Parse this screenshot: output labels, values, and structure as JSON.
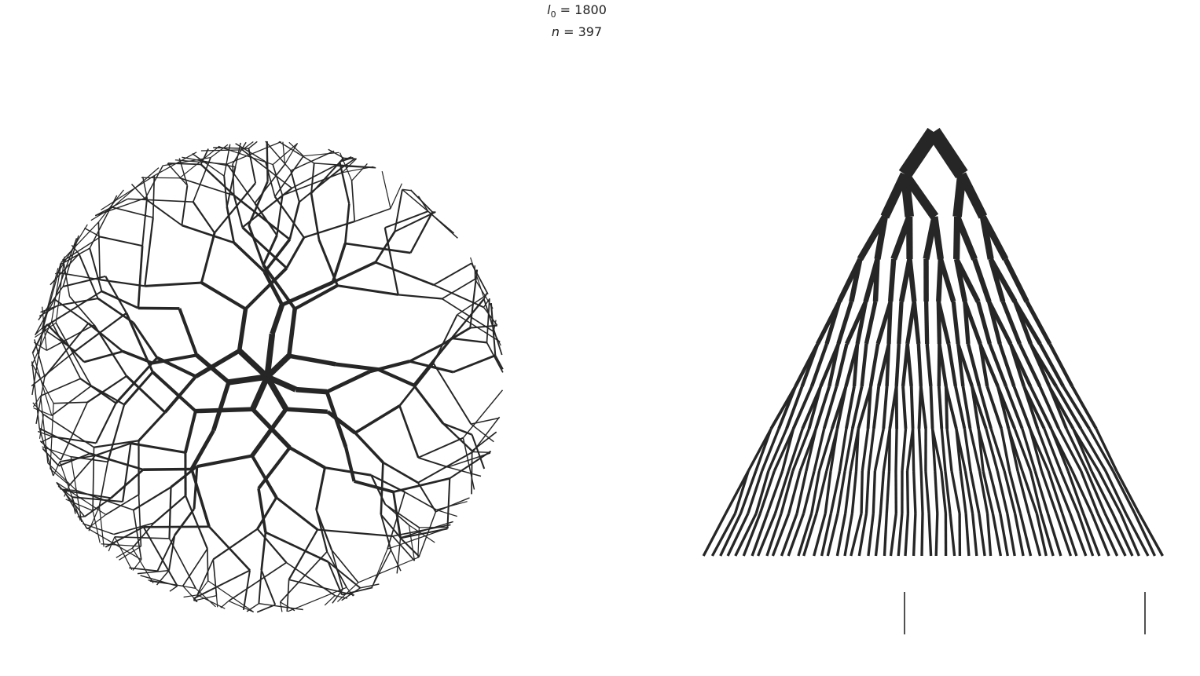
{
  "title": {
    "l0_symbol": "l",
    "l0_subscript": "0",
    "l0_value": "1800",
    "n_symbol": "n",
    "n_value": "397"
  },
  "panels": {
    "left": {
      "kind": "radial-tree"
    },
    "right": {
      "kind": "layered-tree"
    }
  },
  "style": {
    "ink_color": "#262626",
    "background": "#ffffff"
  }
}
